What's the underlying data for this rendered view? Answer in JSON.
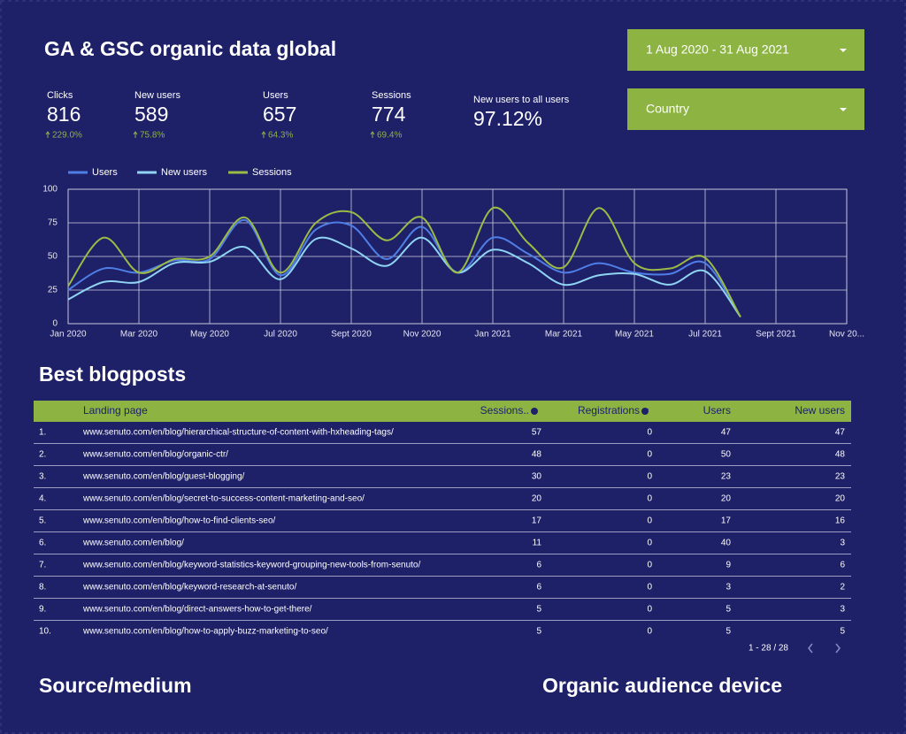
{
  "header": {
    "title": "GA & GSC organic data global"
  },
  "controls": {
    "date_range": "1 Aug 2020 - 31 Aug 2021",
    "country": "Country"
  },
  "scorecards": [
    {
      "label": "Clicks",
      "value": "816",
      "delta": "229.0%"
    },
    {
      "label": "New users",
      "value": "589",
      "delta": "75.8%"
    },
    {
      "label": "Users",
      "value": "657",
      "delta": "64.3%"
    },
    {
      "label": "Sessions",
      "value": "774",
      "delta": "69.4%"
    },
    {
      "label": "New users to all users",
      "value": "97.12%"
    }
  ],
  "chart_data": {
    "type": "line",
    "categories": [
      "Jan 2020",
      null,
      "Mar 2020",
      null,
      "May 2020",
      null,
      "Jul 2020",
      null,
      "Sept 2020",
      null,
      "Nov 2020",
      null,
      "Jan 2021",
      null,
      "Mar 2021",
      null,
      "May 2021",
      null,
      "Jul 2021",
      null,
      "Sept 2021",
      null,
      "Nov 20..."
    ],
    "series": [
      {
        "name": "Users",
        "color": "#4f7fe6",
        "values": [
          25,
          41,
          38,
          47,
          48,
          77,
          36,
          70,
          73,
          48,
          72,
          38,
          64,
          52,
          38,
          45,
          38,
          37,
          45,
          5,
          null,
          null,
          null
        ]
      },
      {
        "name": "New users",
        "color": "#8fd4f2",
        "values": [
          18,
          31,
          31,
          45,
          46,
          57,
          33,
          63,
          56,
          43,
          64,
          38,
          55,
          45,
          29,
          36,
          37,
          29,
          39,
          5,
          null,
          null,
          null
        ]
      },
      {
        "name": "Sessions",
        "color": "#9cbb45",
        "values": [
          28,
          64,
          38,
          48,
          50,
          79,
          38,
          75,
          83,
          62,
          79,
          38,
          86,
          60,
          42,
          86,
          45,
          41,
          49,
          5,
          null,
          null,
          null
        ]
      }
    ],
    "ylim": [
      0,
      100
    ],
    "yticks": [
      0,
      25,
      50,
      75,
      100
    ],
    "grid": true,
    "legend": "top"
  },
  "sections": {
    "blogposts": "Best blogposts",
    "source": "Source/medium",
    "device": "Organic audience device"
  },
  "table": {
    "columns": [
      "Landing page",
      "Sessions..",
      "Registrations",
      "Users",
      "New users"
    ],
    "rows": [
      [
        "1.",
        "www.senuto.com/en/blog/hierarchical-structure-of-content-with-hxheading-tags/",
        57,
        0,
        47,
        47
      ],
      [
        "2.",
        "www.senuto.com/en/blog/organic-ctr/",
        48,
        0,
        50,
        48
      ],
      [
        "3.",
        "www.senuto.com/en/blog/guest-blogging/",
        30,
        0,
        23,
        23
      ],
      [
        "4.",
        "www.senuto.com/en/blog/secret-to-success-content-marketing-and-seo/",
        20,
        0,
        20,
        20
      ],
      [
        "5.",
        "www.senuto.com/en/blog/how-to-find-clients-seo/",
        17,
        0,
        17,
        16
      ],
      [
        "6.",
        "www.senuto.com/en/blog/",
        11,
        0,
        40,
        3
      ],
      [
        "7.",
        "www.senuto.com/en/blog/keyword-statistics-keyword-grouping-new-tools-from-senuto/",
        6,
        0,
        9,
        6
      ],
      [
        "8.",
        "www.senuto.com/en/blog/keyword-research-at-senuto/",
        6,
        0,
        3,
        2
      ],
      [
        "9.",
        "www.senuto.com/en/blog/direct-answers-how-to-get-there/",
        5,
        0,
        5,
        3
      ],
      [
        "10.",
        "www.senuto.com/en/blog/how-to-apply-buzz-marketing-to-seo/",
        5,
        0,
        5,
        5
      ]
    ],
    "pagination": "1 - 28 / 28"
  }
}
